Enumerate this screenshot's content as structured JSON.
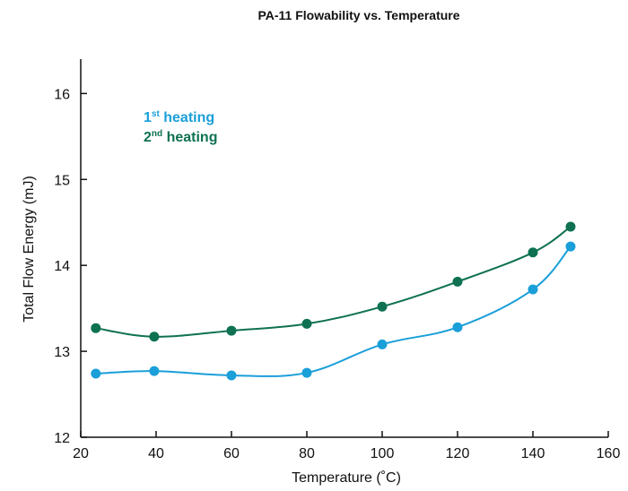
{
  "chart_data": {
    "type": "line",
    "title": "PA-11 Flowability vs. Temperature",
    "xlabel": "Temperature (˚C)",
    "ylabel": "Total Flow Energy (mJ)",
    "xlim": [
      20,
      160
    ],
    "ylim": [
      12,
      16.4
    ],
    "xticks": [
      "20",
      "40",
      "60",
      "80",
      "100",
      "120",
      "140",
      "160"
    ],
    "yticks": [
      "12",
      "13",
      "14",
      "15",
      "16"
    ],
    "grid": false,
    "legend_position": "top-left",
    "series": [
      {
        "name": "1st heating",
        "legend": {
          "main": "1",
          "sup": "st",
          "rest": " heating"
        },
        "color": "#1a9fd9",
        "x": [
          24,
          39.5,
          60,
          80,
          100,
          120,
          140,
          150
        ],
        "y": [
          12.74,
          12.77,
          12.72,
          12.75,
          13.08,
          13.28,
          13.72,
          14.22
        ]
      },
      {
        "name": "2nd heating",
        "legend": {
          "main": "2",
          "sup": "nd",
          "rest": " heating"
        },
        "color": "#0e7152",
        "x": [
          24,
          39.5,
          60,
          80,
          100,
          120,
          140,
          150
        ],
        "y": [
          13.27,
          13.17,
          13.24,
          13.32,
          13.52,
          13.81,
          14.15,
          14.45
        ]
      }
    ]
  }
}
